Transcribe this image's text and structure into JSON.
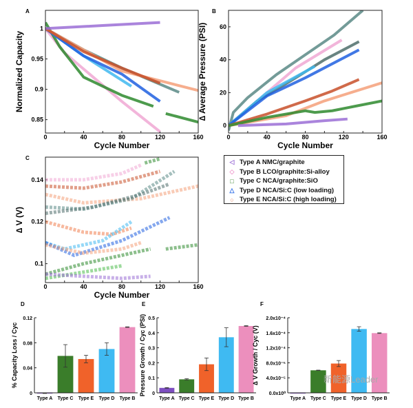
{
  "legend": [
    {
      "label": "Type A NMC/graphite",
      "symbol": "◁",
      "color": "#9b6fd6"
    },
    {
      "label": "Type B LCO/graphite:Si-alloy",
      "symbol": "◇",
      "color": "#f0a0d0"
    },
    {
      "label": "Type C NCA/graphite:SiO",
      "symbol": "□",
      "color": "#2e7d22"
    },
    {
      "label": "Type D NCA/Si:C (low loading)",
      "symbol": "△",
      "color": "#2f6ee8"
    },
    {
      "label": "Type E NCA/Si:C (high loading)",
      "symbol": "○",
      "color": "#e08060"
    }
  ],
  "watermark": "新能源Leader",
  "chart_data": [
    {
      "panel": "A",
      "type": "line",
      "xlabel": "Cycle Number",
      "ylabel": "Normalized Capacity",
      "xlim": [
        0,
        160
      ],
      "ylim": [
        0.828,
        1.03
      ],
      "xticks": [
        "0",
        "40",
        "80",
        "120",
        "160"
      ],
      "yticks": [
        "0.85",
        "0.9",
        "0.95",
        "1"
      ],
      "ytick_values": [
        0.85,
        0.9,
        0.95,
        1
      ],
      "series": [
        {
          "name": "Type B",
          "color": "#f0a8d4",
          "points": [
            [
              0,
              1
            ],
            [
              10,
              0.98
            ],
            [
              20,
              0.96
            ],
            [
              50,
              0.92
            ],
            [
              80,
              0.88
            ],
            [
              120,
              0.83
            ]
          ]
        },
        {
          "name": "Type C",
          "color": "#2e8a2e",
          "points": [
            [
              0,
              1.01
            ],
            [
              15,
              0.97
            ],
            [
              40,
              0.92
            ],
            [
              80,
              0.89
            ],
            [
              113,
              0.872
            ]
          ]
        },
        {
          "name": "Type C (cont.)",
          "color": "#2e8a2e",
          "points": [
            [
              126,
              0.86
            ],
            [
              160,
              0.846
            ]
          ]
        },
        {
          "name": "Type D light",
          "color": "#40b8f0",
          "points": [
            [
              0,
              1
            ],
            [
              40,
              0.955
            ],
            [
              90,
              0.905
            ]
          ]
        },
        {
          "name": "Type D",
          "color": "#2060e0",
          "points": [
            [
              0,
              1
            ],
            [
              40,
              0.955
            ],
            [
              80,
              0.925
            ],
            [
              120,
              0.88
            ]
          ]
        },
        {
          "name": "Type D gray",
          "color": "#5b8a86",
          "points": [
            [
              0,
              1
            ],
            [
              40,
              0.965
            ],
            [
              80,
              0.935
            ],
            [
              140,
              0.895
            ]
          ]
        },
        {
          "name": "Type E light",
          "color": "#f4a07a",
          "points": [
            [
              0,
              1
            ],
            [
              80,
              0.93
            ],
            [
              130,
              0.91
            ],
            [
              160,
              0.898
            ]
          ]
        },
        {
          "name": "Type E",
          "color": "#c8502a",
          "points": [
            [
              0,
              1
            ],
            [
              40,
              0.962
            ],
            [
              80,
              0.935
            ],
            [
              120,
              0.91
            ]
          ]
        },
        {
          "name": "Type A",
          "color": "#9b6fd6",
          "points": [
            [
              0,
              1
            ],
            [
              60,
              1.005
            ],
            [
              120,
              1.01
            ]
          ]
        }
      ]
    },
    {
      "panel": "B",
      "type": "line",
      "xlabel": "Cycle Number",
      "ylabel": "∆ Average Pressure (PSI)",
      "xlim": [
        0,
        160
      ],
      "ylim": [
        -4.5,
        70
      ],
      "xticks": [
        "0",
        "40",
        "80",
        "120",
        "160"
      ],
      "yticks": [
        "0",
        "20",
        "40",
        "60"
      ],
      "ytick_values": [
        0,
        20,
        40,
        60
      ],
      "series": [
        {
          "name": "Type D gray",
          "color": "#5b8a86",
          "points": [
            [
              0,
              -3
            ],
            [
              5,
              8
            ],
            [
              20,
              17
            ],
            [
              50,
              31
            ],
            [
              80,
              43
            ],
            [
              110,
              55
            ],
            [
              140,
              70
            ]
          ]
        },
        {
          "name": "Type B",
          "color": "#f0a8d4",
          "points": [
            [
              0,
              0
            ],
            [
              40,
              20
            ],
            [
              70,
              35
            ],
            [
              118,
              52
            ]
          ]
        },
        {
          "name": "Type D dark gray",
          "color": "#4f6e6b",
          "points": [
            [
              0,
              0
            ],
            [
              30,
              15
            ],
            [
              70,
              29
            ],
            [
              100,
              40
            ],
            [
              136,
              51
            ]
          ]
        },
        {
          "name": "Type D light",
          "color": "#40b8f0",
          "points": [
            [
              0,
              0
            ],
            [
              40,
              20
            ],
            [
              90,
              36
            ]
          ]
        },
        {
          "name": "Type D",
          "color": "#2060e0",
          "points": [
            [
              0,
              0
            ],
            [
              40,
              18
            ],
            [
              80,
              29
            ],
            [
              136,
              46
            ]
          ]
        },
        {
          "name": "Type E",
          "color": "#c8502a",
          "points": [
            [
              0,
              0
            ],
            [
              40,
              7
            ],
            [
              80,
              15
            ],
            [
              108,
              21
            ],
            [
              136,
              28
            ]
          ]
        },
        {
          "name": "Type E light",
          "color": "#f4a07a",
          "points": [
            [
              0,
              0
            ],
            [
              60,
              6
            ],
            [
              100,
              15
            ],
            [
              160,
              26
            ]
          ]
        },
        {
          "name": "Type C",
          "color": "#2e8a2e",
          "points": [
            [
              0,
              0
            ],
            [
              40,
              5
            ],
            [
              80,
              9
            ],
            [
              90,
              8
            ],
            [
              108,
              9
            ],
            [
              160,
              15
            ]
          ]
        },
        {
          "name": "Type A",
          "color": "#9b6fd6",
          "points": [
            [
              10,
              0
            ],
            [
              60,
              1
            ],
            [
              100,
              3
            ],
            [
              124,
              4
            ]
          ]
        }
      ]
    },
    {
      "panel": "C",
      "type": "scatter",
      "xlabel": "Cycle Number",
      "ylabel": "∆ V (V)",
      "xlim": [
        0,
        160
      ],
      "ylim": [
        0.091,
        0.1508
      ],
      "xticks": [
        "0",
        "40",
        "80",
        "120",
        "160"
      ],
      "yticks": [
        "0.1",
        "0.12",
        "0.14"
      ],
      "ytick_values": [
        0.1,
        0.12,
        0.14
      ],
      "series": [
        {
          "name": "Type B",
          "color": "#f0a8d4",
          "symbol": "◇",
          "points": [
            [
              0,
              0.14
            ],
            [
              40,
              0.14
            ],
            [
              80,
              0.143
            ],
            [
              100,
              0.147
            ]
          ]
        },
        {
          "name": "Type E",
          "color": "#c8502a",
          "symbol": "○",
          "points": [
            [
              0,
              0.137
            ],
            [
              40,
              0.136
            ],
            [
              80,
              0.139
            ],
            [
              120,
              0.144
            ]
          ]
        },
        {
          "name": "Type E light",
          "color": "#f4a07a",
          "symbol": "○",
          "points": [
            [
              0,
              0.133
            ],
            [
              40,
              0.129
            ],
            [
              100,
              0.131
            ],
            [
              160,
              0.137
            ]
          ]
        },
        {
          "name": "Type D gray",
          "color": "#5b8a86",
          "symbol": "△",
          "points": [
            [
              0,
              0.127
            ],
            [
              40,
              0.126
            ],
            [
              90,
              0.131
            ],
            [
              135,
              0.144
            ]
          ]
        },
        {
          "name": "Type D dark gray",
          "color": "#4f6e6b",
          "symbol": "△",
          "points": [
            [
              0,
              0.124
            ],
            [
              50,
              0.127
            ],
            [
              100,
              0.133
            ],
            [
              130,
              0.138
            ]
          ]
        },
        {
          "name": "Type E mid",
          "color": "#f08050",
          "symbol": "○",
          "points": [
            [
              0,
              0.12
            ],
            [
              40,
              0.115
            ],
            [
              70,
              0.114
            ],
            [
              90,
              0.117
            ]
          ]
        },
        {
          "name": "Type D light",
          "color": "#40b8f0",
          "symbol": "△",
          "points": [
            [
              0,
              0.11
            ],
            [
              20,
              0.107
            ],
            [
              60,
              0.111
            ],
            [
              90,
              0.12
            ]
          ]
        },
        {
          "name": "Type D",
          "color": "#2060e0",
          "symbol": "△",
          "points": [
            [
              0,
              0.11
            ],
            [
              30,
              0.104
            ],
            [
              80,
              0.111
            ],
            [
              130,
              0.122
            ]
          ]
        },
        {
          "name": "Type E low",
          "color": "#f4a07a",
          "symbol": "○",
          "points": [
            [
              0,
              0.109
            ],
            [
              40,
              0.105
            ],
            [
              80,
              0.107
            ],
            [
              100,
              0.11
            ]
          ]
        },
        {
          "name": "Type C",
          "color": "#2e8a2e",
          "symbol": "□",
          "points": [
            [
              0,
              0.095
            ],
            [
              40,
              0.1
            ],
            [
              80,
              0.104
            ],
            [
              110,
              0.107
            ]
          ]
        },
        {
          "name": "Type C (cont.)",
          "color": "#2e8a2e",
          "symbol": "□",
          "points": [
            [
              126,
              0.107
            ],
            [
              160,
              0.109
            ]
          ]
        },
        {
          "name": "Type C top",
          "color": "#2e8a2e",
          "symbol": "□",
          "points": [
            [
              104,
              0.148
            ],
            [
              120,
              0.15
            ]
          ]
        },
        {
          "name": "Type C light",
          "color": "#4cbb4c",
          "symbol": "□",
          "points": [
            [
              0,
              0.093
            ],
            [
              40,
              0.096
            ],
            [
              80,
              0.099
            ]
          ]
        },
        {
          "name": "Type A",
          "color": "#9b6fd6",
          "symbol": "◁",
          "points": [
            [
              0,
              0.095
            ],
            [
              40,
              0.094
            ],
            [
              80,
              0.093
            ],
            [
              110,
              0.094
            ]
          ]
        }
      ]
    },
    {
      "panel": "D",
      "type": "bar",
      "ylabel": "% Capacity Loss / Cyc",
      "ylim": [
        0,
        0.12
      ],
      "yticks": [
        "0",
        "0.04",
        "0.08",
        "0.12"
      ],
      "ytick_values": [
        0,
        0.04,
        0.08,
        0.12
      ],
      "categories": [
        "Type A",
        "Type C",
        "Type E",
        "Type D",
        "Type B"
      ],
      "values": [
        -0.0005,
        0.059,
        0.054,
        0.07,
        0.105
      ],
      "errors": [
        0.0005,
        0.018,
        0.006,
        0.01,
        0.0005
      ],
      "colors": [
        "#7e4fc0",
        "#3a7d2a",
        "#f0622a",
        "#3fbaf2",
        "#ec8fbd"
      ]
    },
    {
      "panel": "E",
      "type": "bar",
      "ylabel": "Pressure Growth / Cyc (PSI)",
      "ylim": [
        0,
        0.5
      ],
      "yticks": [
        "0",
        "0.1",
        "0.2",
        "0.3",
        "0.4",
        "0.5"
      ],
      "ytick_values": [
        0,
        0.1,
        0.2,
        0.3,
        0.4,
        0.5
      ],
      "categories": [
        "Type A",
        "Type C",
        "Type E",
        "Type D",
        "Type B"
      ],
      "values": [
        0.033,
        0.09,
        0.19,
        0.37,
        0.445
      ],
      "errors": [
        0.002,
        0.004,
        0.042,
        0.063,
        0.002
      ],
      "colors": [
        "#7e4fc0",
        "#3a7d2a",
        "#f0622a",
        "#3fbaf2",
        "#ec8fbd"
      ]
    },
    {
      "panel": "F",
      "type": "bar",
      "ylabel": "∆ V Growth / Cyc (V)",
      "ylim": [
        0,
        0.0002
      ],
      "yticks": [
        "0.0x10⁰",
        "4.0x10⁻⁵",
        "8.0x10⁻⁵",
        "1.2x10⁻⁴",
        "1.6x10⁻⁴",
        "2.0x10⁻⁴"
      ],
      "ytick_values": [
        0,
        4e-05,
        8e-05,
        0.00012,
        0.00016,
        0.0002
      ],
      "categories": [
        "Type A",
        "Type C",
        "Type E",
        "Type D",
        "Type B"
      ],
      "values": [
        0,
        6e-05,
        7.8e-05,
        0.00017,
        0.000159
      ],
      "errors": [
        0,
        5e-07,
        8e-06,
        6e-06,
        8e-07
      ],
      "colors": [
        "#7e4fc0",
        "#3a7d2a",
        "#f0622a",
        "#3fbaf2",
        "#ec8fbd"
      ]
    }
  ]
}
